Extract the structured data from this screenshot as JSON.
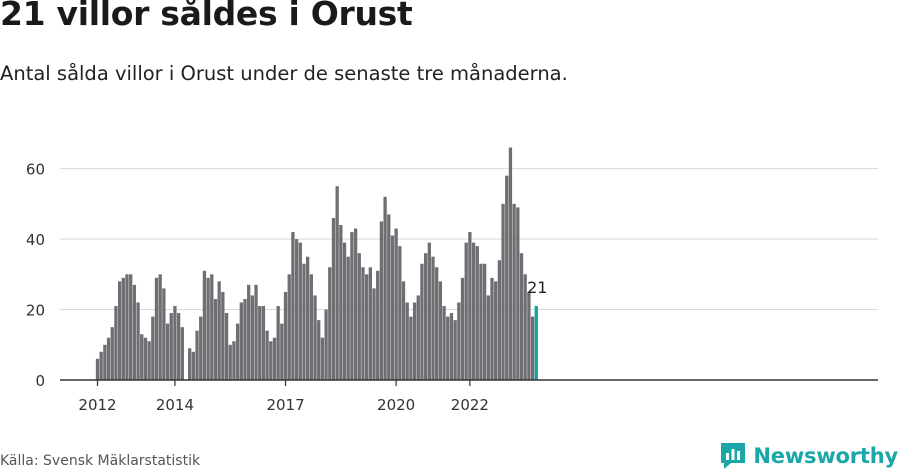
{
  "header": {
    "title": "21 villor såldes i Orust",
    "subtitle": "Antal sålda villor i Orust under de senaste tre månaderna."
  },
  "footer": {
    "source": "Källa: Svensk Mäklarstatistik",
    "brand": "Newsworthy"
  },
  "colors": {
    "bar": "#6f6e73",
    "highlight": "#17a0a0",
    "grid": "#d9d9d9",
    "axis": "#333333",
    "brand": "#1aa7a7"
  },
  "chart_data": {
    "type": "bar",
    "title": "21 villor såldes i Orust",
    "xlabel": "",
    "ylabel": "",
    "ylim": [
      0,
      66
    ],
    "yticks": [
      "0",
      "20",
      "40",
      "60"
    ],
    "ytick_values": [
      0,
      20,
      40,
      60
    ],
    "xticks": [
      {
        "label": "2012",
        "index": 0
      },
      {
        "label": "2014",
        "index": 21
      },
      {
        "label": "2017",
        "index": 51
      },
      {
        "label": "2020",
        "index": 81
      },
      {
        "label": "2022",
        "index": 101
      }
    ],
    "highlight_label": "21",
    "series": [
      {
        "name": "Antal sålda villor (rullande tre månader)",
        "values": [
          6,
          8,
          10,
          12,
          15,
          21,
          28,
          29,
          30,
          30,
          27,
          22,
          13,
          12,
          11,
          18,
          29,
          30,
          26,
          16,
          19,
          21,
          19,
          15,
          null,
          9,
          8,
          14,
          18,
          31,
          29,
          30,
          23,
          28,
          25,
          19,
          10,
          11,
          16,
          22,
          23,
          27,
          24,
          27,
          21,
          21,
          14,
          11,
          12,
          21,
          16,
          25,
          30,
          42,
          40,
          39,
          33,
          35,
          30,
          24,
          17,
          12,
          20,
          32,
          46,
          55,
          44,
          39,
          35,
          42,
          43,
          36,
          32,
          30,
          32,
          26,
          31,
          45,
          52,
          47,
          41,
          43,
          38,
          28,
          22,
          18,
          22,
          24,
          33,
          36,
          39,
          35,
          32,
          28,
          21,
          18,
          19,
          17,
          22,
          29,
          39,
          42,
          39,
          38,
          33,
          33,
          24,
          29,
          28,
          34,
          50,
          58,
          66,
          50,
          49,
          36,
          30,
          25,
          18,
          21
        ]
      }
    ]
  }
}
